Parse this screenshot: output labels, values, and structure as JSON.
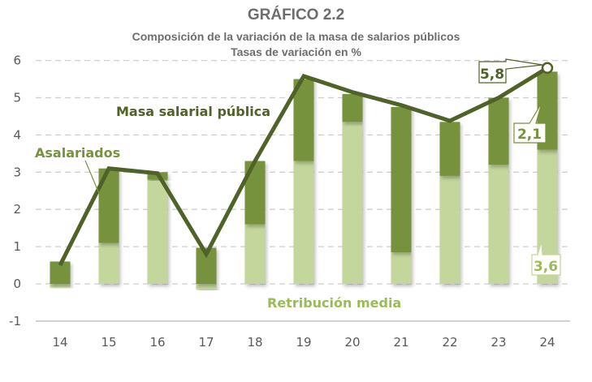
{
  "chart_data": {
    "type": "bar",
    "title": "GRÁFICO 2.2",
    "subtitle": "Composición de la variación de la masa de salarios públicos",
    "subtitle2": "Tasas de variación en %",
    "xlabel": "",
    "ylabel": "",
    "ylim": [
      -1,
      6
    ],
    "yticks": [
      6,
      5,
      4,
      3,
      2,
      1,
      0,
      -1
    ],
    "categories": [
      "14",
      "15",
      "16",
      "17",
      "18",
      "19",
      "20",
      "21",
      "22",
      "23",
      "24"
    ],
    "grid": true,
    "stacked": true,
    "series": [
      {
        "name": "Retribución media",
        "kind": "bar",
        "color": "#C3D69B",
        "values": [
          -0.1,
          1.1,
          2.8,
          -0.15,
          1.6,
          3.3,
          4.35,
          0.85,
          2.9,
          3.2,
          3.6
        ]
      },
      {
        "name": "Asalariados",
        "kind": "bar",
        "color": "#76923C",
        "values": [
          0.6,
          2.0,
          0.2,
          0.97,
          1.7,
          2.2,
          0.75,
          3.9,
          1.45,
          1.8,
          2.1
        ]
      },
      {
        "name": "Masa salarial pública",
        "kind": "line",
        "color": "#4F6228",
        "values": [
          0.5,
          3.1,
          2.97,
          0.8,
          3.3,
          5.58,
          5.15,
          4.8,
          4.38,
          5.0,
          5.8
        ]
      }
    ],
    "annotations": [
      {
        "text": "Masa salarial pública",
        "series": "Masa salarial pública"
      },
      {
        "text": "Asalariados",
        "series": "Asalariados"
      },
      {
        "text": "Retribución media",
        "series": "Retribución media"
      },
      {
        "text": "5,8",
        "category": "24",
        "series": "Masa salarial pública"
      },
      {
        "text": "2,1",
        "category": "24",
        "series": "Asalariados"
      },
      {
        "text": "3,6",
        "category": "24",
        "series": "Retribución media"
      }
    ]
  }
}
